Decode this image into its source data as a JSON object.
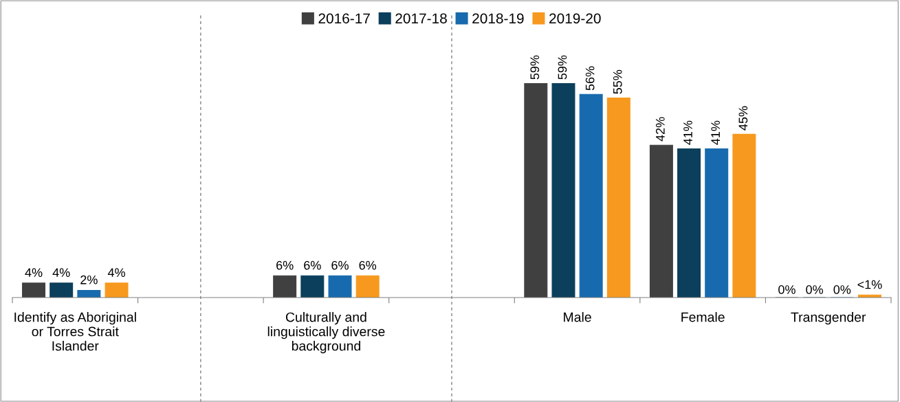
{
  "chart_data": {
    "type": "bar",
    "categories": [
      "Identify as Aboriginal or Torres Strait Islander",
      null,
      "Culturally and linguistically diverse background",
      null,
      "Male",
      "Female",
      "Transgender"
    ],
    "series": [
      {
        "name": "2016-17",
        "color": "#404040",
        "values": [
          4,
          null,
          6,
          null,
          59,
          42,
          0
        ],
        "value_labels": [
          "4%",
          null,
          "6%",
          null,
          "59%",
          "42%",
          "0%"
        ]
      },
      {
        "name": "2017-18",
        "color": "#0b3f5c",
        "values": [
          4,
          null,
          6,
          null,
          59,
          41,
          0
        ],
        "value_labels": [
          "4%",
          null,
          "6%",
          null,
          "59%",
          "41%",
          "0%"
        ]
      },
      {
        "name": "2018-19",
        "color": "#176aad",
        "values": [
          2,
          null,
          6,
          null,
          56,
          41,
          0
        ],
        "value_labels": [
          "2%",
          null,
          "6%",
          null,
          "56%",
          "41%",
          "0%"
        ]
      },
      {
        "name": "2019-20",
        "color": "#f7991f",
        "values": [
          4,
          null,
          6,
          null,
          55,
          45,
          0.7
        ],
        "value_labels": [
          "4%",
          null,
          "6%",
          null,
          "55%",
          "45%",
          "<1%"
        ]
      }
    ],
    "ylim": [
      0,
      82
    ],
    "legend": "top"
  }
}
